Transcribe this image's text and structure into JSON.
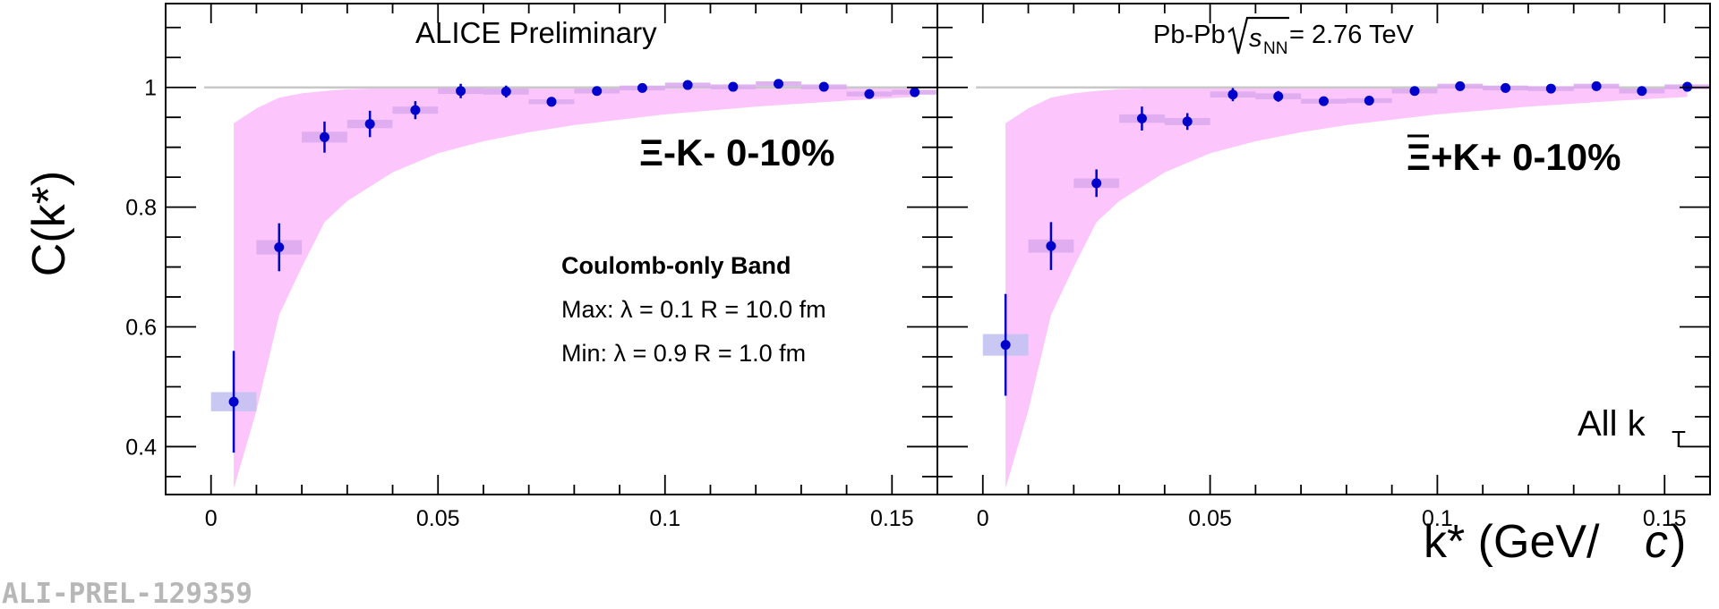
{
  "figure": {
    "watermark": "ALI-PREL-129359",
    "top_label": "ALICE Preliminary",
    "ylabel": "C(k*)",
    "xlabel_main": "k* (GeV/",
    "xlabel_c": "c",
    "xlabel_close": ")"
  },
  "colors": {
    "band": "#fcc6fc",
    "marker": "#0000cc",
    "syst_box_first": "#c2c2f2",
    "syst_box": "#dcaaee",
    "reference_line": "#c8c8c8"
  },
  "chart_data": [
    {
      "type": "scatter",
      "panel": "left",
      "channel_label": "Ξ-K-  0-10%",
      "band_legend": {
        "title": "Coulomb-only Band",
        "max_line": "Max: λ = 0.1  R = 10.0 fm",
        "min_line": "Min: λ = 0.9  R = 1.0 fm"
      },
      "xlim": [
        -0.01,
        0.16
      ],
      "ylim": [
        0.32,
        1.14
      ],
      "x_ticks": [
        "0",
        "0.05",
        "0.1",
        "0.15"
      ],
      "y_ticks": [
        "0.4",
        "0.6",
        "0.8",
        "1"
      ],
      "reference_y": 1.0,
      "points": {
        "x": [
          0.005,
          0.015,
          0.025,
          0.035,
          0.045,
          0.055,
          0.065,
          0.075,
          0.085,
          0.095,
          0.105,
          0.115,
          0.125,
          0.135,
          0.145,
          0.155
        ],
        "y": [
          0.475,
          0.733,
          0.917,
          0.939,
          0.962,
          0.994,
          0.993,
          0.976,
          0.994,
          0.999,
          1.004,
          1.001,
          1.006,
          1.001,
          0.989,
          0.992
        ],
        "stat_err": [
          0.085,
          0.04,
          0.026,
          0.022,
          0.015,
          0.012,
          0.01,
          0.008,
          0.007,
          0.006,
          0.005,
          0.005,
          0.005,
          0.005,
          0.005,
          0.005
        ],
        "syst_err": [
          0.016,
          0.012,
          0.009,
          0.007,
          0.006,
          0.005,
          0.005,
          0.004,
          0.004,
          0.004,
          0.004,
          0.004,
          0.004,
          0.004,
          0.004,
          0.004
        ]
      },
      "band": {
        "x": [
          0.005,
          0.01,
          0.015,
          0.02,
          0.025,
          0.03,
          0.04,
          0.05,
          0.06,
          0.07,
          0.08,
          0.1,
          0.12,
          0.14,
          0.155
        ],
        "upper": [
          0.94,
          0.965,
          0.983,
          0.99,
          0.994,
          0.997,
          0.999,
          1.0,
          1.0,
          1.0,
          1.0,
          1.0,
          1.0,
          1.0,
          1.0
        ],
        "lower": [
          0.33,
          0.46,
          0.62,
          0.7,
          0.775,
          0.81,
          0.858,
          0.89,
          0.91,
          0.925,
          0.937,
          0.955,
          0.968,
          0.978,
          0.984
        ]
      }
    },
    {
      "type": "scatter",
      "panel": "right",
      "channel_label": "Ξ+K+  0-10%",
      "system_label": "Pb-Pb",
      "energy_label": "s",
      "energy_sub": "NN",
      "energy_value": " = 2.76 TeV",
      "kt_label": "All k",
      "kt_sub": "T",
      "xlim": [
        -0.01,
        0.16
      ],
      "ylim": [
        0.32,
        1.14
      ],
      "x_ticks": [
        "0",
        "0.05",
        "0.1",
        "0.15"
      ],
      "reference_y": 1.0,
      "points": {
        "x": [
          0.005,
          0.015,
          0.025,
          0.035,
          0.045,
          0.055,
          0.065,
          0.075,
          0.085,
          0.095,
          0.105,
          0.115,
          0.125,
          0.135,
          0.145,
          0.155
        ],
        "y": [
          0.57,
          0.735,
          0.84,
          0.948,
          0.943,
          0.988,
          0.985,
          0.977,
          0.978,
          0.994,
          1.002,
          0.999,
          0.998,
          1.002,
          0.994,
          1.001
        ],
        "stat_err": [
          0.085,
          0.04,
          0.023,
          0.02,
          0.014,
          0.011,
          0.009,
          0.007,
          0.006,
          0.005,
          0.005,
          0.005,
          0.004,
          0.004,
          0.004,
          0.004
        ],
        "syst_err": [
          0.018,
          0.011,
          0.008,
          0.007,
          0.006,
          0.005,
          0.005,
          0.004,
          0.004,
          0.004,
          0.004,
          0.004,
          0.004,
          0.004,
          0.004,
          0.004
        ]
      },
      "band": {
        "x": [
          0.005,
          0.01,
          0.015,
          0.02,
          0.025,
          0.03,
          0.04,
          0.05,
          0.06,
          0.07,
          0.08,
          0.1,
          0.12,
          0.14,
          0.155
        ],
        "upper": [
          0.94,
          0.965,
          0.983,
          0.99,
          0.994,
          0.997,
          0.999,
          1.0,
          1.0,
          1.0,
          1.0,
          1.0,
          1.0,
          1.0,
          1.0
        ],
        "lower": [
          0.33,
          0.46,
          0.62,
          0.7,
          0.775,
          0.81,
          0.858,
          0.89,
          0.91,
          0.925,
          0.937,
          0.955,
          0.968,
          0.978,
          0.984
        ]
      }
    }
  ]
}
